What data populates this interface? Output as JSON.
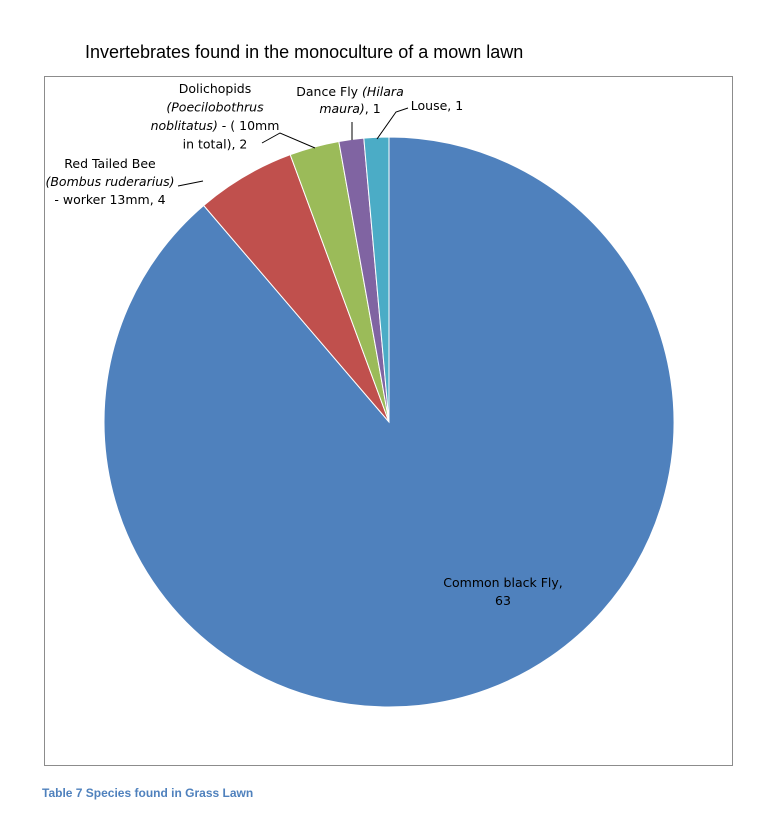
{
  "title": "Invertebrates found in the monoculture of a mown lawn",
  "caption": "Table 7 Species found in Grass Lawn",
  "chart_data": {
    "type": "pie",
    "title": "Invertebrates found in the monoculture of a mown lawn",
    "legend": "none",
    "start_angle_deg": 0,
    "direction": "clockwise",
    "slices": [
      {
        "label": "Common black Fly, 63",
        "value": 63,
        "color": "#4f81bd",
        "label_lines": [
          [
            {
              "t": "Common black Fly,"
            }
          ],
          [
            {
              "t": "63"
            }
          ]
        ]
      },
      {
        "label": "Red Tailed Bee (Bombus ruderarius) - worker 13mm, 4",
        "value": 4,
        "color": "#c0504d",
        "label_lines": [
          [
            {
              "t": "Red Tailed Bee"
            }
          ],
          [
            {
              "t": "(Bombus ruderarius)",
              "i": true
            }
          ],
          [
            {
              "t": "- worker 13mm, 4"
            }
          ]
        ]
      },
      {
        "label": "Dolichopids (Poecilobothrus noblitatus) - ( 10mm in total), 2",
        "value": 2,
        "color": "#9bbb59",
        "label_lines": [
          [
            {
              "t": "Dolichopids"
            }
          ],
          [
            {
              "t": "(Poecilobothrus",
              "i": true
            }
          ],
          [
            {
              "t": "noblitatus)",
              "i": true
            },
            {
              "t": " - ( 10mm"
            }
          ],
          [
            {
              "t": "in total), 2"
            }
          ]
        ]
      },
      {
        "label": "Dance Fly (Hilara maura), 1",
        "value": 1,
        "color": "#8064a2",
        "label_lines": [
          [
            {
              "t": "Dance Fly "
            },
            {
              "t": "(Hilara",
              "i": true
            }
          ],
          [
            {
              "t": "maura)",
              "i": true
            },
            {
              "t": ", 1"
            }
          ]
        ]
      },
      {
        "label": "Louse, 1",
        "value": 1,
        "color": "#4bacc6",
        "label_lines": [
          [
            {
              "t": "Louse, 1"
            }
          ]
        ]
      }
    ]
  }
}
